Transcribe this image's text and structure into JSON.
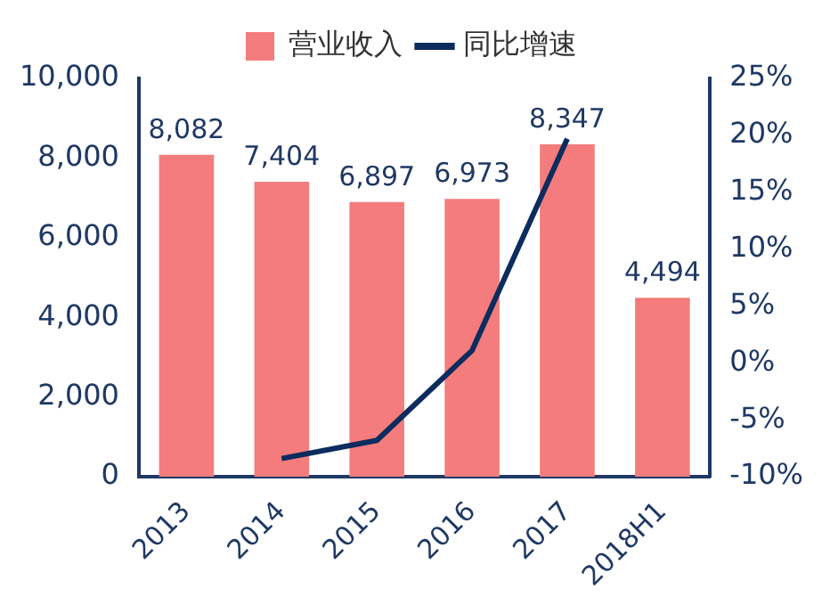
{
  "chart_data": {
    "type": "bar",
    "categories": [
      "2013",
      "2014",
      "2015",
      "2016",
      "2017",
      "2018H1"
    ],
    "series": [
      {
        "name": "营业收入",
        "color": "#f47c7c",
        "values": [
          8082,
          7404,
          6897,
          6973,
          8347,
          4494
        ],
        "value_labels": [
          "8,082",
          "7,404",
          "6,897",
          "6,973",
          "8,347",
          "4,494"
        ]
      },
      {
        "name": "同比增速",
        "type": "line",
        "axis": "y2",
        "color": "#0c2c5e",
        "values": [
          null,
          -8.4,
          -6.8,
          1.1,
          19.7,
          null
        ]
      }
    ],
    "ylim": [
      0,
      10000
    ],
    "yticks": [
      {
        "value": 0,
        "label": "0"
      },
      {
        "value": 2000,
        "label": "2,000"
      },
      {
        "value": 4000,
        "label": "4,000"
      },
      {
        "value": 6000,
        "label": "6,000"
      },
      {
        "value": 8000,
        "label": "8,000"
      },
      {
        "value": 10000,
        "label": "10,000"
      }
    ],
    "y2lim": [
      -10,
      25
    ],
    "y2ticks": [
      {
        "value": -10,
        "label": "-10%"
      },
      {
        "value": -5,
        "label": "-5%"
      },
      {
        "value": 0,
        "label": "0%"
      },
      {
        "value": 5,
        "label": "5%"
      },
      {
        "value": 10,
        "label": "10%"
      },
      {
        "value": 15,
        "label": "15%"
      },
      {
        "value": 20,
        "label": "20%"
      },
      {
        "value": 25,
        "label": "25%"
      }
    ],
    "grid": false,
    "legend": "top",
    "marker": "none",
    "line_style": "solid"
  }
}
